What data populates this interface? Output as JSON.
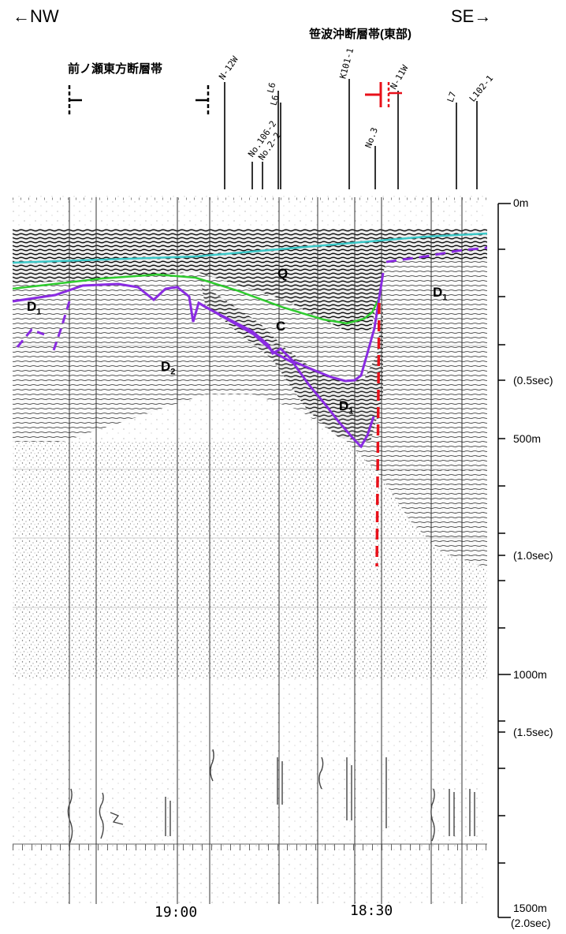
{
  "direction": {
    "left": "←NW",
    "right": "SE→"
  },
  "fault_zones": {
    "west": "前ノ瀬東方断層帯",
    "east": "笹波沖断層帯(東部)"
  },
  "crossing_lines": [
    "N-12W",
    "No.106-2",
    "No.2-2",
    "L6",
    "L6",
    "K101-1",
    "No.3",
    "N-11W",
    "L7",
    "L102-1"
  ],
  "horizons": {
    "Q": "Q",
    "C": "C",
    "D1": "D",
    "D1_sub": "1",
    "D2": "D",
    "D2_sub": "2"
  },
  "depth_scale": {
    "m0": "0m",
    "sec05": "(0.5sec)",
    "m500": "500m",
    "sec10": "(1.0sec)",
    "m1000": "1000m",
    "sec15": "(1.5sec)",
    "m1500": "1500m",
    "sec20": "(2.0sec)"
  },
  "time_labels": {
    "t1900": "19:00",
    "t1830": "18:30"
  },
  "colors": {
    "seafloor": "#3cc8c8",
    "q_base": "#2ecc2e",
    "d_top": "#8a2be2",
    "fault": "#e8101a"
  }
}
